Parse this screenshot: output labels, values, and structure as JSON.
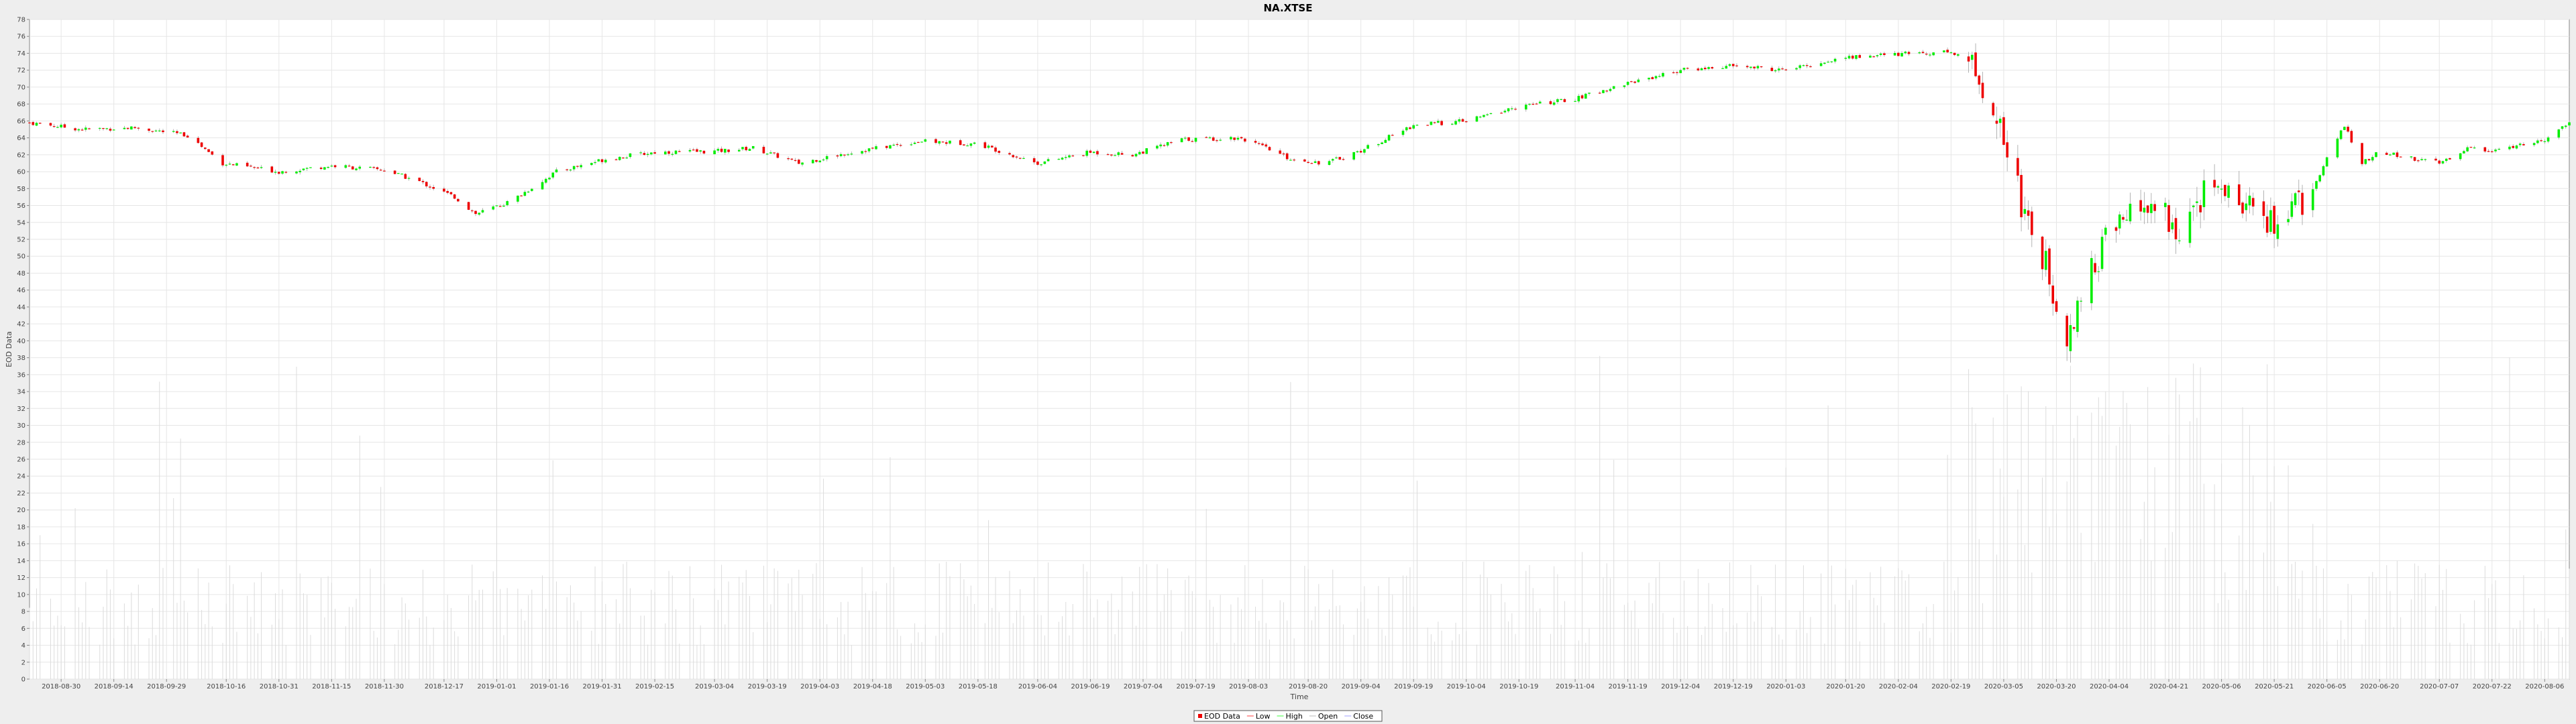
{
  "chart_data": {
    "type": "candlestick",
    "title": "NA.XTSE",
    "xlabel": "Time",
    "ylabel": "EOD Data",
    "ylim": [
      0,
      78
    ],
    "yticks": [
      0,
      2,
      4,
      6,
      8,
      10,
      12,
      14,
      16,
      18,
      20,
      22,
      24,
      26,
      28,
      30,
      32,
      34,
      36,
      38,
      40,
      42,
      44,
      46,
      48,
      50,
      52,
      54,
      56,
      58,
      60,
      62,
      64,
      66,
      68,
      70,
      72,
      74,
      76,
      78
    ],
    "x_start": "2018-08-21",
    "x_end": "2020-08-13",
    "xtick_labels": [
      "2018-08-30",
      "2018-09-14",
      "2018-09-29",
      "2018-10-16",
      "2018-10-31",
      "2018-11-15",
      "2018-11-30",
      "2018-12-17",
      "2019-01-01",
      "2019-01-16",
      "2019-01-31",
      "2019-02-15",
      "2019-03-04",
      "2019-03-19",
      "2019-04-03",
      "2019-04-18",
      "2019-05-03",
      "2019-05-18",
      "2019-06-04",
      "2019-06-19",
      "2019-07-04",
      "2019-07-19",
      "2019-08-03",
      "2019-08-20",
      "2019-09-04",
      "2019-09-19",
      "2019-10-04",
      "2019-10-19",
      "2019-11-04",
      "2019-11-19",
      "2019-12-04",
      "2019-12-19",
      "2020-01-03",
      "2020-01-20",
      "2020-02-04",
      "2020-02-19",
      "2020-03-05",
      "2020-03-20",
      "2020-04-04",
      "2020-04-21",
      "2020-05-06",
      "2020-05-21",
      "2020-06-05",
      "2020-06-20",
      "2020-07-07",
      "2020-07-22",
      "2020-08-06"
    ],
    "grid": true,
    "legend_position": "bottom-center",
    "series": [
      {
        "name": "EOD Data",
        "role": "candle",
        "up_color": "#00ee00",
        "down_color": "#ee0000"
      },
      {
        "name": "Low",
        "role": "line",
        "color": "#ff8080"
      },
      {
        "name": "High",
        "role": "line",
        "color": "#80ff80"
      },
      {
        "name": "Open",
        "role": "line",
        "color": "#d0d0d0"
      },
      {
        "name": "Close",
        "role": "line",
        "color": "#c0c0ff"
      }
    ],
    "price_path": [
      [
        "2018-08-21",
        65.8
      ],
      [
        "2018-09-05",
        65.0
      ],
      [
        "2018-09-20",
        65.2
      ],
      [
        "2018-10-05",
        64.3
      ],
      [
        "2018-10-15",
        61.0
      ],
      [
        "2018-10-31",
        60.0
      ],
      [
        "2018-11-15",
        60.7
      ],
      [
        "2018-11-30",
        60.2
      ],
      [
        "2018-12-10",
        58.8
      ],
      [
        "2018-12-20",
        57.0
      ],
      [
        "2018-12-26",
        55.0
      ],
      [
        "2019-01-05",
        56.5
      ],
      [
        "2019-01-18",
        60.0
      ],
      [
        "2019-02-01",
        61.5
      ],
      [
        "2019-02-15",
        62.3
      ],
      [
        "2019-03-04",
        62.4
      ],
      [
        "2019-03-15",
        62.8
      ],
      [
        "2019-03-28",
        61.0
      ],
      [
        "2019-04-12",
        62.3
      ],
      [
        "2019-05-01",
        63.6
      ],
      [
        "2019-05-18",
        63.3
      ],
      [
        "2019-06-04",
        61.0
      ],
      [
        "2019-06-19",
        62.3
      ],
      [
        "2019-07-01",
        62.0
      ],
      [
        "2019-07-15",
        63.8
      ],
      [
        "2019-08-01",
        64.0
      ],
      [
        "2019-08-15",
        61.5
      ],
      [
        "2019-08-25",
        61.0
      ],
      [
        "2019-09-04",
        62.5
      ],
      [
        "2019-09-19",
        65.5
      ],
      [
        "2019-10-04",
        66.0
      ],
      [
        "2019-10-19",
        67.7
      ],
      [
        "2019-11-04",
        68.6
      ],
      [
        "2019-11-19",
        70.5
      ],
      [
        "2019-12-04",
        72.0
      ],
      [
        "2019-12-19",
        72.5
      ],
      [
        "2020-01-03",
        72.0
      ],
      [
        "2020-01-20",
        73.5
      ],
      [
        "2020-02-04",
        73.9
      ],
      [
        "2020-02-19",
        74.2
      ],
      [
        "2020-02-24",
        73.0
      ],
      [
        "2020-03-02",
        68.0
      ],
      [
        "2020-03-06",
        62.5
      ],
      [
        "2020-03-10",
        56.5
      ],
      [
        "2020-03-16",
        50.0
      ],
      [
        "2020-03-23",
        41.0
      ],
      [
        "2020-03-27",
        45.0
      ],
      [
        "2020-04-04",
        53.0
      ],
      [
        "2020-04-15",
        56.0
      ],
      [
        "2020-04-25",
        53.0
      ],
      [
        "2020-05-01",
        57.5
      ],
      [
        "2020-05-13",
        56.5
      ],
      [
        "2020-05-21",
        53.5
      ],
      [
        "2020-06-01",
        58.0
      ],
      [
        "2020-06-05",
        61.5
      ],
      [
        "2020-06-10",
        65.5
      ],
      [
        "2020-06-15",
        61.0
      ],
      [
        "2020-06-20",
        62.3
      ],
      [
        "2020-07-07",
        61.0
      ],
      [
        "2020-07-15",
        62.8
      ],
      [
        "2020-07-22",
        62.5
      ],
      [
        "2020-08-06",
        63.8
      ],
      [
        "2020-08-13",
        66.0
      ]
    ],
    "volume_scale_note": ""
  }
}
